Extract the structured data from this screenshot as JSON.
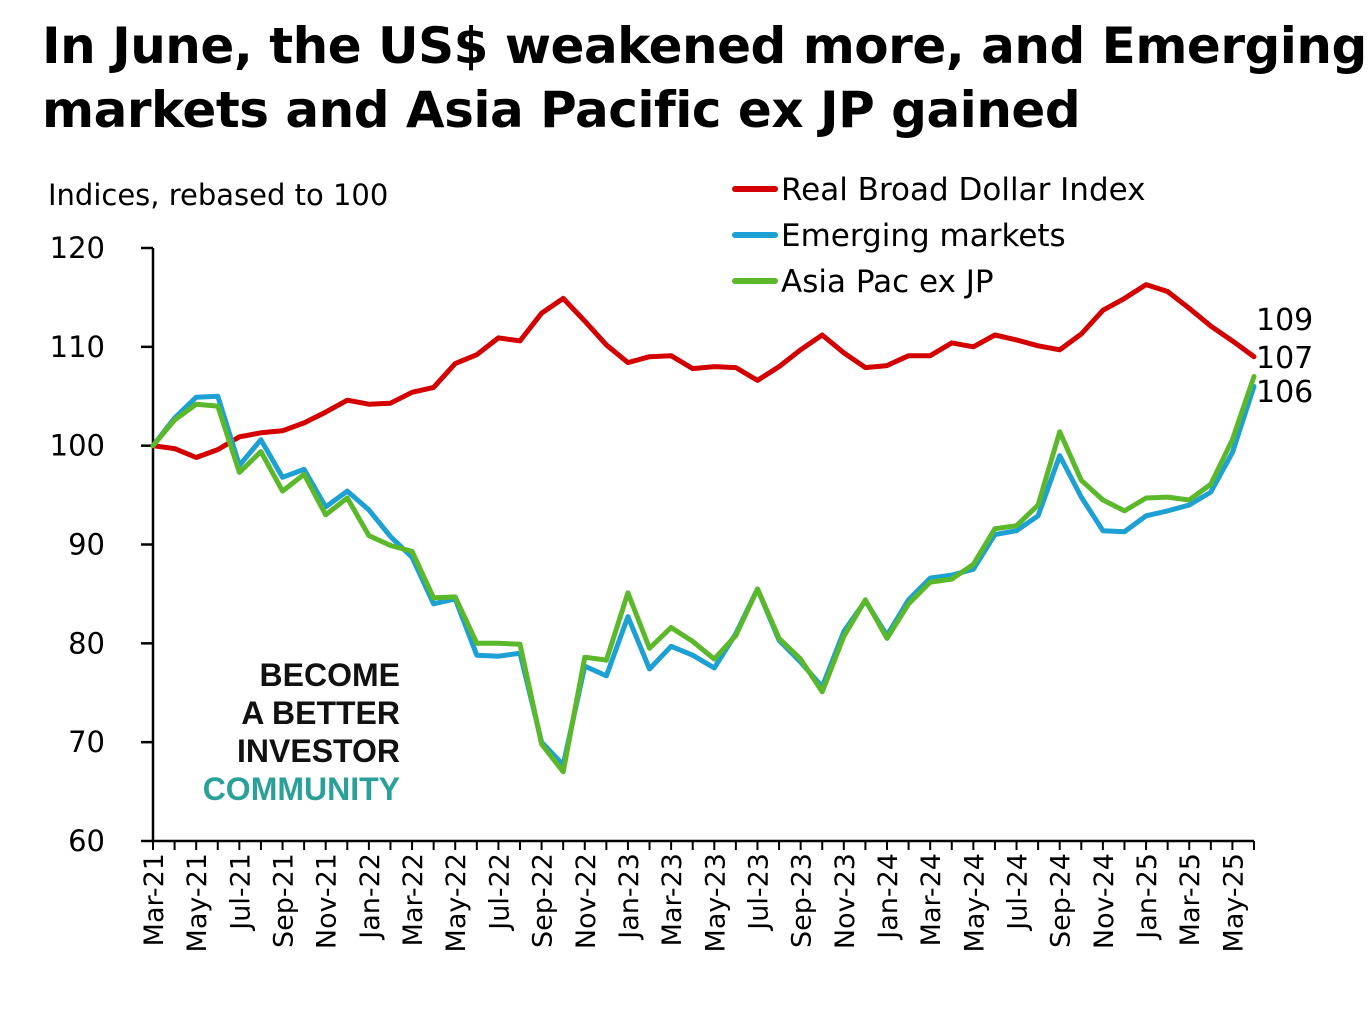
{
  "title_lines": [
    "In June, the US$ weakened more, and Emerging",
    "markets and Asia Pacific ex JP gained"
  ],
  "watermark": {
    "lines": [
      "BECOME",
      "A BETTER",
      "INVESTOR"
    ],
    "accent_line": "COMMUNITY",
    "colors": {
      "dark": "#111111",
      "accent": "#2aa198"
    }
  },
  "chart_data": {
    "type": "line",
    "ylabel": "Indices, rebased to 100",
    "ylim": [
      60,
      120
    ],
    "yticks": [
      60,
      70,
      80,
      90,
      100,
      110,
      120
    ],
    "legend_position": "top-right",
    "x": [
      "Mar-21",
      "Apr-21",
      "May-21",
      "Jun-21",
      "Jul-21",
      "Aug-21",
      "Sep-21",
      "Oct-21",
      "Nov-21",
      "Dec-21",
      "Jan-22",
      "Feb-22",
      "Mar-22",
      "Apr-22",
      "May-22",
      "Jun-22",
      "Jul-22",
      "Aug-22",
      "Sep-22",
      "Oct-22",
      "Nov-22",
      "Dec-22",
      "Jan-23",
      "Feb-23",
      "Mar-23",
      "Apr-23",
      "May-23",
      "Jun-23",
      "Jul-23",
      "Aug-23",
      "Sep-23",
      "Oct-23",
      "Nov-23",
      "Dec-23",
      "Jan-24",
      "Feb-24",
      "Mar-24",
      "Apr-24",
      "May-24",
      "Jun-24",
      "Jul-24",
      "Aug-24",
      "Sep-24",
      "Oct-24",
      "Nov-24",
      "Dec-24",
      "Jan-25",
      "Feb-25",
      "Mar-25",
      "Apr-25",
      "May-25",
      "Jun-25"
    ],
    "xtick_labels": [
      "Mar-21",
      "May-21",
      "Jul-21",
      "Sep-21",
      "Nov-21",
      "Jan-22",
      "Mar-22",
      "May-22",
      "Jul-22",
      "Sep-22",
      "Nov-22",
      "Jan-23",
      "Mar-23",
      "May-23",
      "Jul-23",
      "Sep-23",
      "Nov-23",
      "Jan-24",
      "Mar-24",
      "May-24",
      "Jul-24",
      "Sep-24",
      "Nov-24",
      "Jan-25",
      "Mar-25",
      "May-25"
    ],
    "series": [
      {
        "name": "Real Broad Dollar Index",
        "color": "#d40000",
        "values": [
          100,
          99.7,
          98.8,
          99.6,
          100.9,
          101.3,
          101.5,
          102.3,
          103.4,
          104.6,
          104.2,
          104.3,
          105.4,
          105.9,
          108.3,
          109.2,
          110.9,
          110.6,
          113.4,
          114.9,
          112.6,
          110.2,
          108.4,
          109.0,
          109.1,
          107.8,
          108.0,
          107.9,
          106.6,
          108.0,
          109.7,
          111.2,
          109.4,
          107.9,
          108.1,
          109.1,
          109.1,
          110.4,
          110.0,
          111.2,
          110.7,
          110.1,
          109.7,
          111.3,
          113.7,
          114.9,
          116.3,
          115.6,
          113.9,
          112.1,
          110.6,
          109
        ]
      },
      {
        "name": "Emerging markets",
        "color": "#1da0d3",
        "values": [
          100,
          102.8,
          104.9,
          105.0,
          98.0,
          100.6,
          96.8,
          97.6,
          93.8,
          95.4,
          93.5,
          90.8,
          88.7,
          84.0,
          84.5,
          78.8,
          78.7,
          79.0,
          70.0,
          67.7,
          77.7,
          76.7,
          82.7,
          77.4,
          79.7,
          78.8,
          77.5,
          81.0,
          85.5,
          80.3,
          78.1,
          75.6,
          81.2,
          84.3,
          80.8,
          84.4,
          86.6,
          86.9,
          87.5,
          91.0,
          91.4,
          92.9,
          99.0,
          94.8,
          91.4,
          91.3,
          92.9,
          93.4,
          94.0,
          95.3,
          99.3,
          106
        ]
      },
      {
        "name": "Asia Pac ex JP",
        "color": "#5bb82a",
        "values": [
          100,
          102.6,
          104.2,
          104.0,
          97.3,
          99.4,
          95.4,
          97.1,
          93.0,
          94.7,
          90.9,
          89.9,
          89.3,
          84.6,
          84.7,
          80.0,
          80.0,
          79.9,
          69.8,
          67.0,
          78.6,
          78.3,
          85.1,
          79.5,
          81.6,
          80.2,
          78.4,
          80.8,
          85.5,
          80.5,
          78.4,
          75.1,
          80.7,
          84.4,
          80.5,
          84.0,
          86.2,
          86.5,
          88.0,
          91.6,
          91.9,
          94.0,
          101.4,
          96.5,
          94.5,
          93.4,
          94.7,
          94.8,
          94.5,
          96.1,
          100.6,
          107
        ]
      }
    ],
    "end_labels": [
      "109",
      "107",
      "106"
    ]
  }
}
